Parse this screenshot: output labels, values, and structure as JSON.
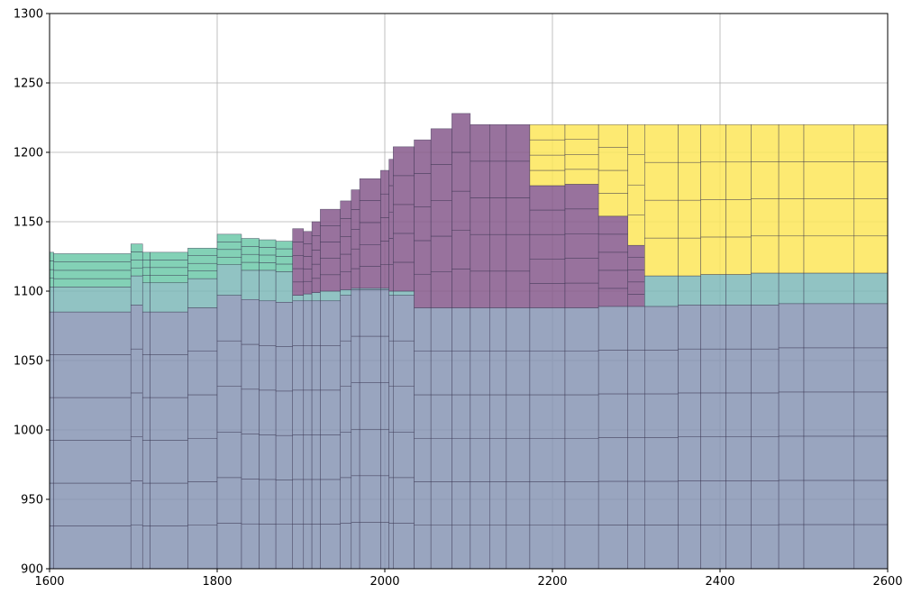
{
  "chart_data": {
    "type": "area",
    "title": "",
    "xlabel": "",
    "ylabel": "",
    "xlim": [
      1600,
      2600
    ],
    "ylim": [
      900,
      1300
    ],
    "xticks": [
      1600,
      1800,
      2000,
      2200,
      2400,
      2600
    ],
    "yticks": [
      900,
      950,
      1000,
      1050,
      1100,
      1150,
      1200,
      1250,
      1300
    ],
    "xtick_labels": [
      "1600",
      "1800",
      "2000",
      "2200",
      "2400",
      "2600"
    ],
    "ytick_labels": [
      "900",
      "950",
      "1000",
      "1050",
      "1100",
      "1150",
      "1200",
      "1250",
      "1300"
    ],
    "grid": true,
    "column_edges": [
      1600,
      1605,
      1697,
      1711,
      1720,
      1765,
      1800,
      1829,
      1850,
      1870,
      1890,
      1903,
      1913,
      1923,
      1947,
      1960,
      1970,
      1995,
      2005,
      2010,
      2035,
      2055,
      2080,
      2102,
      2125,
      2145,
      2173,
      2215,
      2255,
      2290,
      2310,
      2350,
      2377,
      2407,
      2437,
      2470,
      2500,
      2560,
      2600
    ],
    "unit_colors": {
      "lower": "#8795b4",
      "middle": "#7eb8b8",
      "upper_green": "#6dc9a9",
      "purple": "#86598c",
      "yellow": "#fde659"
    },
    "units": [
      {
        "color": "lower",
        "subdivide": 6,
        "top": [
          1085,
          1085,
          1090,
          1085,
          1085,
          1088,
          1097,
          1094,
          1093,
          1092,
          1093,
          1093,
          1093,
          1093,
          1097,
          1101,
          1101,
          1101,
          1097,
          1097,
          1088,
          1088,
          1088,
          1088,
          1088,
          1088,
          1088,
          1088,
          1089,
          1089,
          1089,
          1090,
          1090,
          1090,
          1090,
          1091,
          1091,
          1091
        ]
      },
      {
        "color": "middle",
        "subdivide": 1,
        "top": [
          1103,
          1103,
          1111,
          1106,
          1106,
          1109,
          1119,
          1115,
          1115,
          1114,
          1097,
          1098,
          1099,
          1100,
          1101,
          1102,
          1102,
          1102,
          1100,
          1100,
          1088,
          1088,
          1088,
          1088,
          1088,
          1088,
          1088,
          1088,
          1089,
          1089,
          1111,
          1111,
          1112,
          1112,
          1113,
          1113,
          1113,
          1113
        ]
      },
      {
        "color": "upper_green",
        "subdivide": 4,
        "top": [
          1128,
          1127,
          1134,
          1128,
          1128,
          1131,
          1141,
          1138,
          1137,
          1136,
          1097,
          1098,
          1099,
          1100,
          1101,
          1102,
          1102,
          1102,
          1100,
          1100,
          1088,
          1088,
          1088,
          1088,
          1088,
          1088,
          1088,
          1088,
          1089,
          1089,
          1111,
          1111,
          1112,
          1112,
          1113,
          1113,
          1113,
          1113
        ]
      },
      {
        "color": "purple",
        "subdivide": 5,
        "top": [
          1128,
          1127,
          1134,
          1128,
          1128,
          1131,
          1141,
          1138,
          1137,
          1136,
          1145,
          1143,
          1150,
          1159,
          1165,
          1173,
          1181,
          1187,
          1195,
          1204,
          1209,
          1217,
          1228,
          1220,
          1220,
          1220,
          1176,
          1177,
          1154,
          1133,
          1111,
          1111,
          1112,
          1112,
          1113,
          1113,
          1113,
          1113
        ]
      },
      {
        "color": "yellow",
        "subdivide": 4,
        "top": [
          1128,
          1127,
          1134,
          1128,
          1128,
          1131,
          1141,
          1138,
          1137,
          1136,
          1145,
          1143,
          1150,
          1159,
          1165,
          1173,
          1181,
          1187,
          1195,
          1204,
          1209,
          1217,
          1228,
          1220,
          1220,
          1220,
          1220,
          1220,
          1220,
          1220,
          1220,
          1220,
          1220,
          1220,
          1220,
          1220,
          1220,
          1220
        ]
      }
    ]
  }
}
